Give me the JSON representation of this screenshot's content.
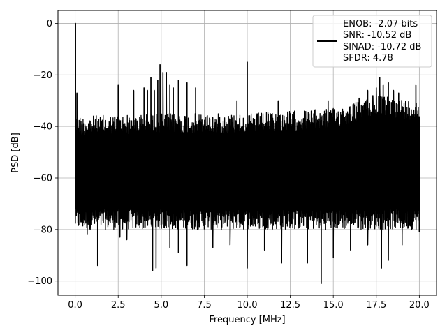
{
  "chart_data": {
    "type": "line",
    "title": "",
    "xlabel": "Frequency [MHz]",
    "ylabel": "PSD [dB]",
    "xlim": [
      -1.0,
      21.0
    ],
    "ylim": [
      -105.5,
      5.0
    ],
    "x_ticks": [
      0.0,
      2.5,
      5.0,
      7.5,
      10.0,
      12.5,
      15.0,
      17.5,
      20.0
    ],
    "x_tick_labels": [
      "0.0",
      "2.5",
      "5.0",
      "7.5",
      "10.0",
      "12.5",
      "15.0",
      "17.5",
      "20.0"
    ],
    "y_ticks": [
      0,
      -20,
      -40,
      -60,
      -80,
      -100
    ],
    "y_tick_labels": [
      "0",
      "−20",
      "−40",
      "−60",
      "−80",
      "−100"
    ],
    "grid": true,
    "legend_position": "top-right",
    "legend_entries": [
      "ENOB: -2.07 bits",
      "SNR: -10.52 dB",
      "SINAD: -10.72 dB",
      "SFDR: 4.78"
    ],
    "line_color": "#000000",
    "x_range": [
      0.0,
      20.0
    ],
    "noise_band_db": [
      -80,
      -36
    ],
    "noise_floor_db": -58,
    "envelope_upper_db": [
      {
        "x": 0.0,
        "y": -36
      },
      {
        "x": 5.0,
        "y": -35
      },
      {
        "x": 10.0,
        "y": -35
      },
      {
        "x": 15.0,
        "y": -33
      },
      {
        "x": 17.5,
        "y": -28
      },
      {
        "x": 20.0,
        "y": -30
      }
    ],
    "spikes": [
      {
        "x": 0.02,
        "y": 0
      },
      {
        "x": 0.1,
        "y": -27
      },
      {
        "x": 2.5,
        "y": -24
      },
      {
        "x": 3.4,
        "y": -26
      },
      {
        "x": 4.0,
        "y": -25
      },
      {
        "x": 4.2,
        "y": -26
      },
      {
        "x": 4.4,
        "y": -21
      },
      {
        "x": 4.6,
        "y": -26
      },
      {
        "x": 4.8,
        "y": -22
      },
      {
        "x": 4.93,
        "y": -16
      },
      {
        "x": 5.1,
        "y": -19
      },
      {
        "x": 5.3,
        "y": -19
      },
      {
        "x": 5.5,
        "y": -24
      },
      {
        "x": 5.7,
        "y": -25
      },
      {
        "x": 6.0,
        "y": -22
      },
      {
        "x": 6.5,
        "y": -23
      },
      {
        "x": 7.0,
        "y": -25
      },
      {
        "x": 9.4,
        "y": -30
      },
      {
        "x": 10.0,
        "y": -15
      },
      {
        "x": 11.8,
        "y": -30
      },
      {
        "x": 14.7,
        "y": -30
      },
      {
        "x": 16.5,
        "y": -29
      },
      {
        "x": 17.0,
        "y": -26
      },
      {
        "x": 17.3,
        "y": -28
      },
      {
        "x": 17.5,
        "y": -25
      },
      {
        "x": 17.7,
        "y": -21
      },
      {
        "x": 17.9,
        "y": -24
      },
      {
        "x": 18.2,
        "y": -23
      },
      {
        "x": 18.5,
        "y": -26
      },
      {
        "x": 18.8,
        "y": -27
      },
      {
        "x": 19.8,
        "y": -24
      }
    ],
    "dips": [
      {
        "x": 0.05,
        "y": -65
      },
      {
        "x": 0.7,
        "y": -82
      },
      {
        "x": 1.3,
        "y": -94
      },
      {
        "x": 2.6,
        "y": -83
      },
      {
        "x": 3.0,
        "y": -84
      },
      {
        "x": 4.5,
        "y": -96
      },
      {
        "x": 4.7,
        "y": -95
      },
      {
        "x": 5.5,
        "y": -87
      },
      {
        "x": 6.0,
        "y": -89
      },
      {
        "x": 6.5,
        "y": -94
      },
      {
        "x": 8.0,
        "y": -87
      },
      {
        "x": 9.0,
        "y": -86
      },
      {
        "x": 10.0,
        "y": -95
      },
      {
        "x": 11.0,
        "y": -88
      },
      {
        "x": 12.0,
        "y": -93
      },
      {
        "x": 13.5,
        "y": -93
      },
      {
        "x": 14.3,
        "y": -101
      },
      {
        "x": 15.0,
        "y": -91
      },
      {
        "x": 16.0,
        "y": -88
      },
      {
        "x": 17.0,
        "y": -86
      },
      {
        "x": 17.8,
        "y": -95
      },
      {
        "x": 18.2,
        "y": -92
      },
      {
        "x": 19.0,
        "y": -86
      },
      {
        "x": 20.0,
        "y": -81
      }
    ]
  }
}
